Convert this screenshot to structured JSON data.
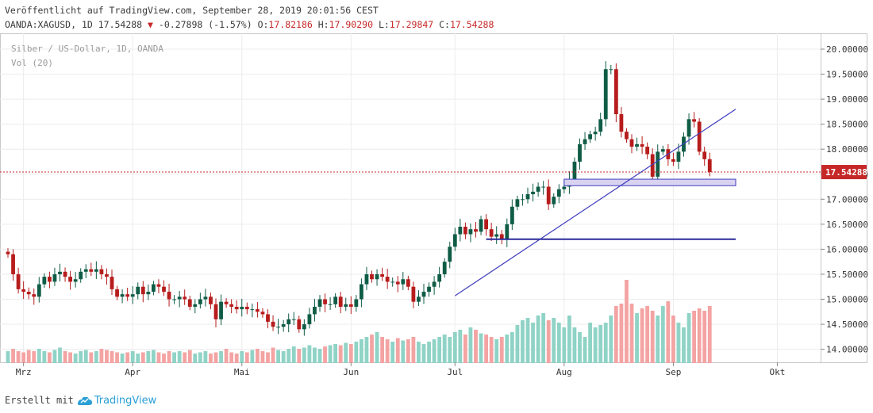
{
  "header": {
    "published": "Veröffentlicht auf TradingView.com, September 28, 2019 20:01:56 CEST",
    "symbol": "OANDA:XAGUSD, 1D",
    "last": "17.54288",
    "arrow": "▼",
    "change": "-0.27898 (-1.57%)",
    "o_label": "O:",
    "o": "17.82186",
    "h_label": "H:",
    "h": "17.90290",
    "l_label": "L:",
    "l": "17.29847",
    "c_label": "C:",
    "c": "17.54288"
  },
  "footer": {
    "prefix": "Erstellt mit",
    "brand": "TradingView"
  },
  "colors": {
    "up": "#26a69a",
    "down": "#ef5350",
    "up_candle": "#0f5c46",
    "down_candle": "#b71c1c",
    "vol_up": "#8fd3c6",
    "vol_down": "#f4a3a3",
    "trendline": "#3f3fbf",
    "support": "#2a2a9a",
    "zone_fill": "#d9d2f0",
    "zone_stroke": "#3f3fbf",
    "price_line": "#c62828",
    "grid": "#ececec"
  },
  "chart_data": {
    "type": "candlestick",
    "title": "Silber / US-Dollar, 1D, OANDA",
    "indicator": "Vol (20)",
    "interval": "1D",
    "ylim": [
      13.75,
      20.25
    ],
    "y_ticks": [
      "20.00000",
      "19.50000",
      "19.00000",
      "18.50000",
      "18.00000",
      "17.50000",
      "17.00000",
      "16.50000",
      "16.00000",
      "15.50000",
      "15.00000",
      "14.50000",
      "14.00000"
    ],
    "x_labels": [
      {
        "label": "Mrz",
        "index": 3
      },
      {
        "label": "Apr",
        "index": 24
      },
      {
        "label": "Mai",
        "index": 45
      },
      {
        "label": "Jun",
        "index": 66
      },
      {
        "label": "Jul",
        "index": 86
      },
      {
        "label": "Aug",
        "index": 107
      },
      {
        "label": "Sep",
        "index": 128
      },
      {
        "label": "Okt",
        "index": 148
      }
    ],
    "last_price": 17.54288,
    "last_price_label": "17.54288",
    "closes": [
      15.9,
      15.5,
      15.2,
      15.15,
      15.1,
      15.05,
      15.3,
      15.45,
      15.35,
      15.5,
      15.55,
      15.45,
      15.35,
      15.4,
      15.55,
      15.6,
      15.55,
      15.6,
      15.5,
      15.45,
      15.2,
      15.05,
      15.1,
      15.05,
      15.1,
      15.25,
      15.1,
      15.15,
      15.3,
      15.25,
      15.15,
      15.0,
      15.0,
      15.05,
      15.0,
      14.85,
      14.9,
      15.0,
      15.05,
      14.9,
      14.6,
      14.95,
      14.9,
      14.85,
      14.8,
      14.85,
      14.8,
      14.8,
      14.75,
      14.7,
      14.55,
      14.45,
      14.45,
      14.5,
      14.6,
      14.6,
      14.4,
      14.5,
      14.7,
      14.85,
      15.0,
      14.9,
      14.9,
      15.05,
      14.85,
      14.9,
      14.85,
      15.0,
      15.3,
      15.5,
      15.4,
      15.5,
      15.45,
      15.35,
      15.35,
      15.3,
      15.4,
      15.25,
      14.95,
      15.05,
      15.15,
      15.25,
      15.35,
      15.5,
      15.75,
      16.05,
      16.3,
      16.45,
      16.3,
      16.4,
      16.35,
      16.6,
      16.4,
      16.25,
      16.3,
      16.2,
      16.5,
      16.85,
      17.0,
      17.0,
      17.1,
      17.15,
      17.25,
      17.25,
      16.9,
      17.05,
      17.2,
      17.25,
      17.4,
      17.75,
      18.1,
      18.2,
      18.3,
      18.35,
      18.6,
      19.6,
      19.6,
      18.7,
      18.35,
      18.2,
      18.05,
      18.1,
      18.05,
      17.9,
      17.45,
      17.95,
      18.0,
      17.8,
      17.75,
      17.95,
      18.25,
      18.6,
      18.55,
      17.95,
      17.8,
      17.54288
    ],
    "volumes": [
      0.1,
      0.12,
      0.1,
      0.09,
      0.11,
      0.1,
      0.12,
      0.1,
      0.09,
      0.11,
      0.13,
      0.1,
      0.09,
      0.08,
      0.1,
      0.11,
      0.09,
      0.1,
      0.12,
      0.11,
      0.1,
      0.09,
      0.08,
      0.09,
      0.1,
      0.08,
      0.09,
      0.1,
      0.11,
      0.09,
      0.08,
      0.1,
      0.09,
      0.1,
      0.09,
      0.11,
      0.08,
      0.09,
      0.1,
      0.08,
      0.09,
      0.1,
      0.12,
      0.09,
      0.08,
      0.1,
      0.09,
      0.11,
      0.12,
      0.1,
      0.09,
      0.13,
      0.11,
      0.1,
      0.12,
      0.14,
      0.12,
      0.13,
      0.15,
      0.13,
      0.12,
      0.14,
      0.15,
      0.16,
      0.15,
      0.17,
      0.16,
      0.18,
      0.2,
      0.22,
      0.24,
      0.26,
      0.22,
      0.2,
      0.18,
      0.21,
      0.19,
      0.2,
      0.22,
      0.18,
      0.16,
      0.18,
      0.2,
      0.22,
      0.24,
      0.22,
      0.26,
      0.28,
      0.24,
      0.3,
      0.28,
      0.25,
      0.24,
      0.22,
      0.2,
      0.22,
      0.24,
      0.26,
      0.32,
      0.36,
      0.38,
      0.34,
      0.4,
      0.42,
      0.36,
      0.38,
      0.34,
      0.3,
      0.4,
      0.3,
      0.26,
      0.22,
      0.34,
      0.3,
      0.32,
      0.34,
      0.4,
      0.48,
      0.5,
      0.7,
      0.5,
      0.42,
      0.46,
      0.48,
      0.44,
      0.4,
      0.48,
      0.52,
      0.4,
      0.34,
      0.3,
      0.42,
      0.44,
      0.46,
      0.44,
      0.48
    ]
  }
}
